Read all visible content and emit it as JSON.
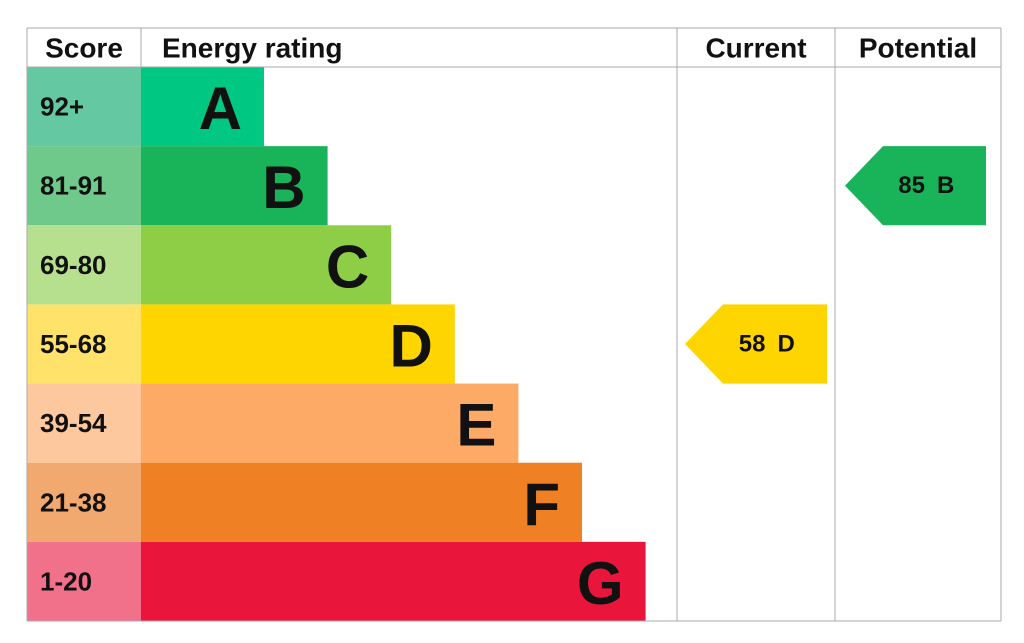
{
  "header": {
    "score": "Score",
    "rating": "Energy rating",
    "current": "Current",
    "potential": "Potential"
  },
  "bands": [
    {
      "score": "92+",
      "letter": "A",
      "color": "#00c781",
      "score_color": "#64c9a3"
    },
    {
      "score": "81-91",
      "letter": "B",
      "color": "#19b459",
      "score_color": "#6fc98a"
    },
    {
      "score": "69-80",
      "letter": "C",
      "color": "#8dce46",
      "score_color": "#b6e08e"
    },
    {
      "score": "55-68",
      "letter": "D",
      "color": "#ffd500",
      "score_color": "#ffe26a"
    },
    {
      "score": "39-54",
      "letter": "E",
      "color": "#fcaa65",
      "score_color": "#fdc89d"
    },
    {
      "score": "21-38",
      "letter": "F",
      "color": "#ef8023",
      "score_color": "#f1a96f"
    },
    {
      "score": "1-20",
      "letter": "G",
      "color": "#e9153b",
      "score_color": "#f1708a"
    }
  ],
  "current": {
    "score": "58",
    "letter": "D"
  },
  "potential": {
    "score": "85",
    "letter": "B"
  }
}
